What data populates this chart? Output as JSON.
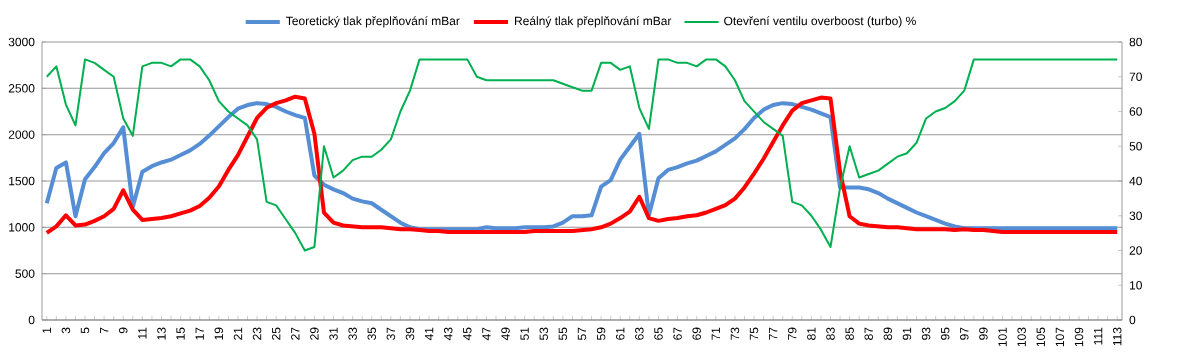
{
  "chart_data": {
    "type": "line",
    "categories": [
      "1",
      null,
      "3",
      null,
      "5",
      null,
      "7",
      null,
      "9",
      null,
      "11",
      null,
      "13",
      null,
      "15",
      null,
      "17",
      null,
      "19",
      null,
      "21",
      null,
      "23",
      null,
      "25",
      null,
      "27",
      null,
      "29",
      null,
      "31",
      null,
      "33",
      null,
      "35",
      null,
      "37",
      null,
      "39",
      null,
      "41",
      null,
      "43",
      null,
      "45",
      null,
      "47",
      null,
      "49",
      null,
      "51",
      null,
      "53",
      null,
      "55",
      null,
      "57",
      null,
      "59",
      null,
      "61",
      null,
      "63",
      null,
      "65",
      null,
      "67",
      null,
      "69",
      null,
      "71",
      null,
      "73",
      null,
      "75",
      null,
      "77",
      null,
      "79",
      null,
      "81",
      null,
      "83",
      null,
      "85",
      null,
      "87",
      null,
      "89",
      null,
      "91",
      null,
      "93",
      null,
      "95",
      null,
      "97",
      null,
      "99",
      null,
      "101",
      null,
      "103",
      null,
      "105",
      null,
      "107",
      null,
      "109",
      null,
      "111",
      null,
      "113"
    ],
    "series": [
      {
        "name": "Teoretický tlak přeplňování mBar",
        "color": "#558ed5",
        "values": [
          1260,
          1640,
          1700,
          1120,
          1520,
          1650,
          1800,
          1910,
          2080,
          1220,
          1600,
          1660,
          1700,
          1730,
          1780,
          1830,
          1900,
          1990,
          2090,
          2190,
          2280,
          2320,
          2340,
          2330,
          2300,
          2250,
          2210,
          2180,
          1560,
          1460,
          1410,
          1370,
          1310,
          1280,
          1260,
          1190,
          1120,
          1050,
          1000,
          980,
          980,
          980,
          980,
          980,
          980,
          980,
          1000,
          990,
          990,
          990,
          1000,
          1000,
          1000,
          1010,
          1050,
          1120,
          1120,
          1130,
          1440,
          1510,
          1730,
          1870,
          2010,
          1130,
          1530,
          1620,
          1650,
          1690,
          1720,
          1770,
          1820,
          1890,
          1960,
          2060,
          2180,
          2270,
          2320,
          2340,
          2330,
          2300,
          2270,
          2230,
          2190,
          1430,
          1430,
          1430,
          1410,
          1370,
          1310,
          1260,
          1210,
          1160,
          1120,
          1080,
          1040,
          1010,
          990,
          990,
          990,
          990,
          990,
          990,
          990,
          990,
          990,
          990,
          990,
          990,
          990,
          990,
          990,
          990,
          990
        ]
      },
      {
        "name": "Reálný tlak přeplňování mBar",
        "color": "#ff0000",
        "values": [
          940,
          1010,
          1130,
          1020,
          1030,
          1070,
          1120,
          1200,
          1400,
          1190,
          1080,
          1090,
          1100,
          1120,
          1150,
          1180,
          1230,
          1320,
          1440,
          1620,
          1780,
          1980,
          2180,
          2290,
          2340,
          2370,
          2410,
          2390,
          2010,
          1160,
          1050,
          1020,
          1010,
          1000,
          1000,
          1000,
          990,
          980,
          980,
          970,
          960,
          960,
          950,
          950,
          950,
          950,
          950,
          950,
          950,
          950,
          950,
          960,
          960,
          960,
          960,
          960,
          970,
          980,
          1000,
          1040,
          1100,
          1170,
          1330,
          1100,
          1070,
          1090,
          1100,
          1120,
          1130,
          1160,
          1200,
          1240,
          1310,
          1430,
          1580,
          1740,
          1920,
          2100,
          2260,
          2340,
          2370,
          2400,
          2390,
          1600,
          1120,
          1040,
          1020,
          1010,
          1000,
          1000,
          990,
          980,
          980,
          980,
          980,
          970,
          980,
          970,
          970,
          960,
          950,
          950,
          950,
          950,
          950,
          950,
          950,
          950,
          950,
          950,
          950,
          950,
          950
        ]
      },
      {
        "name": "Otevření ventilu overboost (turbo) %",
        "color": "#00b050",
        "axis": "y2",
        "values": [
          70,
          73,
          62,
          56,
          75,
          74,
          72,
          70,
          58,
          53,
          73,
          74,
          74,
          73,
          75,
          75,
          73,
          69,
          63,
          60,
          58,
          56,
          52,
          34,
          33,
          29,
          25,
          20,
          21,
          50,
          41,
          43,
          46,
          47,
          47,
          49,
          52,
          60,
          66,
          75,
          75,
          75,
          75,
          75,
          75,
          70,
          69,
          69,
          69,
          69,
          69,
          69,
          69,
          69,
          68,
          67,
          66,
          66,
          74,
          74,
          72,
          73,
          61,
          55,
          75,
          75,
          74,
          74,
          73,
          75,
          75,
          73,
          69,
          63,
          60,
          57,
          55,
          53,
          34,
          33,
          30,
          26,
          21,
          38,
          50,
          41,
          42,
          43,
          45,
          47,
          48,
          51,
          58,
          60,
          61,
          63,
          66,
          75,
          75,
          75,
          75,
          75,
          75,
          75,
          75,
          75,
          75,
          75,
          75,
          75,
          75,
          75,
          75
        ]
      }
    ],
    "ylim": [
      0,
      3000
    ],
    "yticks": [
      0,
      500,
      1000,
      1500,
      2000,
      2500,
      3000
    ],
    "y2lim": [
      0,
      80
    ],
    "y2ticks": [
      0,
      10,
      20,
      30,
      40,
      50,
      60,
      70,
      80
    ],
    "grid": "y",
    "legend": "top"
  }
}
